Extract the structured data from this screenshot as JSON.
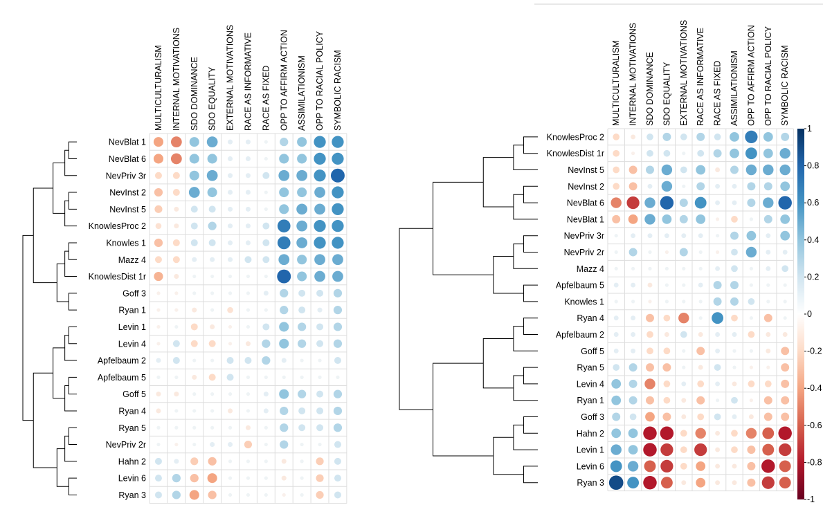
{
  "chart_data": [
    {
      "type": "heatmap",
      "title": "",
      "value_range": [
        -1,
        1
      ],
      "columns": [
        "MULTICULTURALISM",
        "INTERNAL MOTIVATIONS",
        "SDO DOMINANCE",
        "SDO EQUALITY",
        "EXTERNAL MOTIVATIONS",
        "RACE AS INFORMATIVE",
        "RACE AS FIXED",
        "OPP TO AFFIRM ACTION",
        "ASSIMILATIONISM",
        "OPP TO RACIAL POLICY",
        "SYMBOLIC RACISM"
      ],
      "rows": [
        "NevBlat 1",
        "NevBlat 6",
        "NevPriv 3r",
        "NevInst 2",
        "NevInst 5",
        "KnowlesProc 2",
        "Knowles 1",
        "Mazz 4",
        "KnowlesDist 1r",
        "Goff 3",
        "Ryan 1",
        "Levin 1",
        "Levin 4",
        "Apfelbaum 2",
        "Apfelbaum 5",
        "Goff 5",
        "Ryan 4",
        "Ryan 5",
        "NevPriv 2r",
        "Hahn 2",
        "Levin 6",
        "Ryan 3"
      ],
      "values": [
        [
          -0.4,
          -0.5,
          0.4,
          0.5,
          0.1,
          0.1,
          0.05,
          0.3,
          0.4,
          0.6,
          0.6
        ],
        [
          -0.4,
          -0.5,
          0.4,
          0.4,
          0.1,
          0.1,
          0.05,
          0.4,
          0.4,
          0.6,
          0.6
        ],
        [
          -0.2,
          -0.2,
          0.4,
          0.5,
          0.1,
          0.1,
          0.2,
          0.5,
          0.5,
          0.6,
          0.8
        ],
        [
          -0.3,
          -0.2,
          0.5,
          0.4,
          0.1,
          0.1,
          0.05,
          0.4,
          0.4,
          0.5,
          0.6
        ],
        [
          -0.25,
          -0.1,
          0.2,
          0.2,
          0.1,
          0.1,
          0.05,
          0.4,
          0.5,
          0.5,
          0.6
        ],
        [
          -0.15,
          -0.1,
          0.2,
          0.3,
          0.1,
          0.1,
          0.2,
          0.7,
          0.5,
          0.6,
          0.6
        ],
        [
          -0.3,
          -0.2,
          0.2,
          0.2,
          0.1,
          0.1,
          0.2,
          0.7,
          0.5,
          0.6,
          0.6
        ],
        [
          -0.2,
          -0.2,
          0.1,
          0.1,
          0.1,
          0.2,
          0.2,
          0.5,
          0.4,
          0.5,
          0.5
        ],
        [
          -0.35,
          -0.1,
          0.05,
          0.05,
          0.05,
          0.05,
          0.05,
          0.8,
          0.4,
          0.5,
          0.5
        ],
        [
          -0.05,
          -0.05,
          0.05,
          0.05,
          0.05,
          0.05,
          0.1,
          0.3,
          0.2,
          0.2,
          0.3
        ],
        [
          -0.05,
          -0.05,
          -0.1,
          0.05,
          -0.15,
          0.05,
          0.05,
          0.3,
          0.2,
          0.1,
          0.3
        ],
        [
          -0.05,
          0.05,
          -0.2,
          -0.1,
          -0.05,
          0.05,
          0.2,
          0.4,
          0.3,
          0.2,
          0.3
        ],
        [
          -0.05,
          0.2,
          -0.2,
          -0.2,
          -0.05,
          -0.1,
          0.3,
          0.4,
          0.3,
          0.2,
          0.3
        ],
        [
          0.1,
          0.2,
          0.05,
          0.05,
          0.2,
          0.2,
          0.3,
          0.1,
          0.05,
          0.05,
          0.2
        ],
        [
          0.05,
          0.05,
          -0.1,
          -0.2,
          0.2,
          0.05,
          0.05,
          0.05,
          0.05,
          0.05,
          0.05
        ],
        [
          -0.1,
          -0.1,
          0.05,
          0.05,
          0.05,
          0.05,
          0.1,
          0.4,
          0.3,
          0.2,
          0.3
        ],
        [
          -0.1,
          0.05,
          0.05,
          0.05,
          -0.1,
          0.05,
          0.1,
          0.3,
          0.2,
          0.2,
          0.3
        ],
        [
          0.05,
          0.05,
          0.05,
          0.05,
          0.05,
          -0.1,
          0.05,
          0.3,
          0.2,
          0.2,
          0.3
        ],
        [
          0.05,
          -0.05,
          0.05,
          0.1,
          0.1,
          -0.25,
          0.05,
          0.3,
          0.05,
          0.05,
          0.2
        ],
        [
          0.2,
          0.1,
          -0.25,
          -0.3,
          0.05,
          0.05,
          0.05,
          -0.1,
          0.05,
          -0.25,
          0.2
        ],
        [
          0.2,
          0.3,
          -0.3,
          -0.4,
          0.05,
          0.05,
          0.05,
          -0.1,
          0.05,
          -0.25,
          0.2
        ],
        [
          0.2,
          0.3,
          -0.4,
          -0.3,
          0.05,
          0.05,
          0.05,
          -0.05,
          0.05,
          -0.25,
          0.2
        ]
      ]
    },
    {
      "type": "heatmap",
      "title": "",
      "value_range": [
        -1,
        1
      ],
      "legend": {
        "position": "right",
        "ticks": [
          "1",
          "0.8",
          "0.6",
          "0.4",
          "0.2",
          "0",
          "-0.2",
          "-0.4",
          "-0.6",
          "-0.8",
          "-1"
        ]
      },
      "columns": [
        "MULTICULTURALISM",
        "INTERNAL MOTIVATIONS",
        "SDO DOMINANCE",
        "SDO EQUALITY",
        "EXTERNAL MOTIVATIONS",
        "RACE AS INFORMATIVE",
        "RACE AS FIXED",
        "ASSIMILATIONISM",
        "OPP TO AFFIRM ACTION",
        "OPP TO RACIAL POLICY",
        "SYMBOLIC RACISM"
      ],
      "rows": [
        "KnowlesProc 2",
        "KnowlesDist 1r",
        "NevInst 5",
        "NevInst 2",
        "NevBlat 6",
        "NevBlat 1",
        "NevPriv 3r",
        "NevPriv 2r",
        "Mazz 4",
        "Apfelbaum 5",
        "Knowles 1",
        "Ryan 4",
        "Apfelbaum 2",
        "Goff 5",
        "Ryan 5",
        "Levin 4",
        "Ryan 1",
        "Goff 3",
        "Hahn 2",
        "Levin 1",
        "Levin 6",
        "Ryan 3"
      ],
      "values": [
        [
          -0.2,
          -0.1,
          0.2,
          0.3,
          0.2,
          0.3,
          0.2,
          0.4,
          0.7,
          0.4,
          0.3
        ],
        [
          -0.2,
          -0.05,
          0.2,
          0.2,
          0.05,
          0.2,
          0.3,
          0.4,
          0.6,
          0.4,
          0.5
        ],
        [
          -0.2,
          -0.3,
          0.3,
          0.5,
          0.2,
          0.4,
          -0.1,
          0.3,
          0.5,
          0.5,
          0.5
        ],
        [
          -0.2,
          -0.3,
          0.1,
          0.5,
          0.05,
          0.3,
          0.1,
          0.1,
          0.3,
          0.3,
          0.4
        ],
        [
          -0.5,
          -0.7,
          0.5,
          0.8,
          0.3,
          0.6,
          0.1,
          0.1,
          0.3,
          0.5,
          0.8
        ],
        [
          -0.3,
          -0.4,
          0.5,
          0.4,
          0.3,
          0.4,
          -0.05,
          -0.2,
          0.05,
          0.3,
          0.4
        ],
        [
          0.05,
          0.1,
          0.1,
          0.1,
          0.1,
          0.1,
          0.05,
          0.3,
          0.4,
          0.1,
          0.4
        ],
        [
          0.05,
          0.3,
          0.05,
          -0.05,
          0.3,
          0.05,
          -0.05,
          0.2,
          0.5,
          0.1,
          0.1
        ],
        [
          0.05,
          0.05,
          0.05,
          0.05,
          0.05,
          0.05,
          0.1,
          0.2,
          0.05,
          0.1,
          0.2
        ],
        [
          0.1,
          0.1,
          -0.1,
          0.05,
          0.05,
          0.1,
          0.3,
          0.3,
          0.05,
          0.05,
          0.05
        ],
        [
          0.05,
          0.05,
          -0.05,
          0.05,
          0.05,
          0.05,
          0.3,
          0.3,
          0.2,
          0.05,
          0.05
        ],
        [
          0.1,
          0.1,
          -0.3,
          -0.2,
          -0.5,
          0.05,
          0.6,
          -0.2,
          0.05,
          -0.3,
          0.05
        ],
        [
          0.1,
          0.1,
          -0.2,
          -0.1,
          0.2,
          -0.1,
          0.1,
          0.1,
          -0.2,
          -0.1,
          -0.1
        ],
        [
          0.1,
          0.1,
          -0.2,
          -0.2,
          0.05,
          -0.3,
          0.1,
          0.05,
          0.05,
          -0.1,
          -0.3
        ],
        [
          0.2,
          0.3,
          -0.3,
          -0.3,
          0.05,
          -0.1,
          0.2,
          0.05,
          -0.05,
          -0.05,
          -0.3
        ],
        [
          0.4,
          0.3,
          -0.5,
          -0.2,
          0.1,
          -0.2,
          0.1,
          -0.1,
          -0.2,
          -0.2,
          -0.3
        ],
        [
          0.4,
          0.3,
          -0.3,
          -0.2,
          -0.1,
          -0.3,
          0.05,
          0.2,
          -0.05,
          -0.3,
          -0.3
        ],
        [
          0.3,
          0.2,
          -0.4,
          -0.3,
          -0.1,
          -0.2,
          0.2,
          0.1,
          -0.1,
          -0.3,
          -0.3
        ],
        [
          0.4,
          0.4,
          -0.8,
          -0.8,
          -0.2,
          -0.5,
          -0.1,
          -0.2,
          -0.5,
          -0.6,
          -0.8
        ],
        [
          0.5,
          0.4,
          -0.8,
          -0.7,
          -0.2,
          -0.7,
          -0.1,
          -0.2,
          -0.3,
          -0.6,
          -0.7
        ],
        [
          0.6,
          0.5,
          -0.6,
          -0.7,
          -0.2,
          -0.4,
          -0.1,
          -0.1,
          -0.3,
          -0.8,
          -0.6
        ],
        [
          0.9,
          0.6,
          -0.8,
          -0.6,
          -0.1,
          -0.4,
          -0.1,
          -0.1,
          -0.3,
          -0.7,
          -0.6
        ]
      ]
    }
  ]
}
